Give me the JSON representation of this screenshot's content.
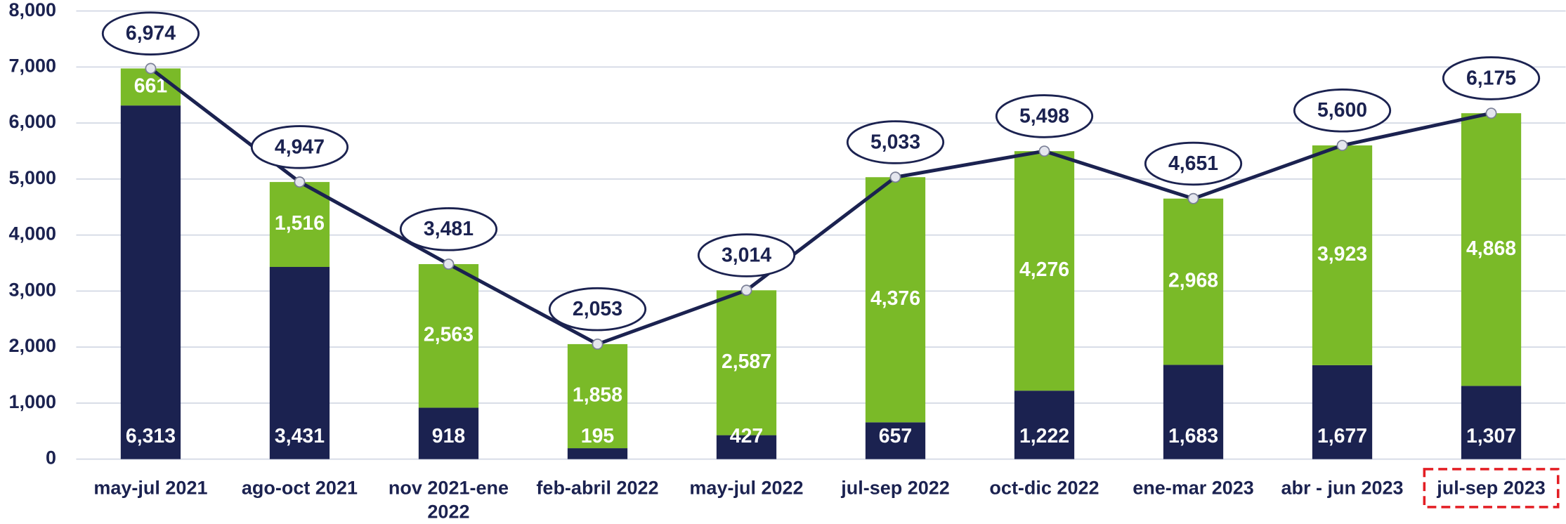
{
  "chart_data": {
    "type": "bar",
    "categories": [
      "may-jul 2021",
      "ago-oct 2021",
      "nov 2021-ene 2022",
      "feb-abril 2022",
      "may-jul 2022",
      "jul-sep 2022",
      "oct-dic 2022",
      "ene-mar 2023",
      "abr - jun 2023",
      "jul-sep 2023"
    ],
    "series": [
      {
        "color": "#1b2250",
        "values": [
          6313,
          3431,
          918,
          195,
          427,
          657,
          1222,
          1683,
          1677,
          1307
        ],
        "value_labels": [
          "6,313",
          "3,431",
          "918",
          "195",
          "427",
          "657",
          "1,222",
          "1,683",
          "1,677",
          "1,307"
        ]
      },
      {
        "color": "#7aba28",
        "values": [
          661,
          1516,
          2563,
          1858,
          2587,
          4376,
          4276,
          2968,
          3923,
          4868
        ],
        "value_labels": [
          "661",
          "1,516",
          "2,563",
          "1,858",
          "2,587",
          "4,376",
          "4,276",
          "2,968",
          "3,923",
          "4,868"
        ]
      },
      {
        "type": "line",
        "color": "#1b2250",
        "values": [
          6974,
          4947,
          3481,
          2053,
          3014,
          5033,
          5498,
          4651,
          5600,
          6175
        ],
        "value_labels": [
          "6,974",
          "4,947",
          "3,481",
          "2,053",
          "3,014",
          "5,033",
          "5,498",
          "4,651",
          "5,600",
          "6,175"
        ]
      }
    ],
    "stacked": true,
    "ylim": [
      0,
      8000
    ],
    "yticks": [
      0,
      {
        "value": 1000,
        "label": "1,000"
      },
      {
        "value": 2000,
        "label": "2,000"
      },
      {
        "value": 3000,
        "label": "3,000"
      },
      {
        "value": 4000,
        "label": "4,000"
      },
      {
        "value": 5000,
        "label": "5,000"
      },
      {
        "value": 6000,
        "label": "6,000"
      },
      {
        "value": 7000,
        "label": "7,000"
      },
      {
        "value": 8000,
        "label": "8,000"
      }
    ],
    "grid": true,
    "highlight": {
      "index": 9,
      "color": "#e31e24"
    }
  }
}
